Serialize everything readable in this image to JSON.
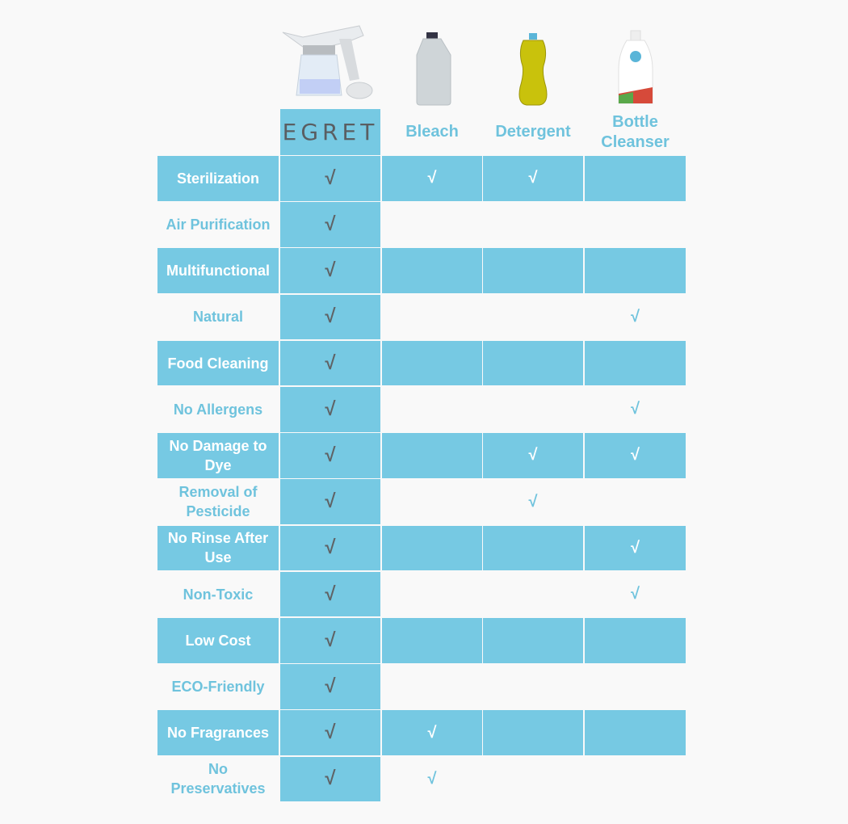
{
  "colors": {
    "accent": "#76c9e3",
    "check_primary": "#5f6366",
    "background": "#f9f9f9"
  },
  "columns": [
    {
      "key": "egret",
      "label": "EGRET",
      "image": "spray-device-image"
    },
    {
      "key": "bleach",
      "label": "Bleach",
      "image": "bleach-jug-image"
    },
    {
      "key": "detergent",
      "label": "Detergent",
      "image": "detergent-bottle-image"
    },
    {
      "key": "bottle_cleanser",
      "label": "Bottle Cleanser",
      "image": "bottle-cleanser-image"
    }
  ],
  "check_symbol": "√",
  "rows": [
    {
      "label": "Sterilization",
      "checks": [
        true,
        true,
        true,
        false
      ]
    },
    {
      "label": "Air Purification",
      "checks": [
        true,
        false,
        false,
        false
      ]
    },
    {
      "label": "Multifunctional",
      "checks": [
        true,
        false,
        false,
        false
      ]
    },
    {
      "label": "Natural",
      "checks": [
        true,
        false,
        false,
        true
      ]
    },
    {
      "label": "Food Cleaning",
      "checks": [
        true,
        false,
        false,
        false
      ]
    },
    {
      "label": "No Allergens",
      "checks": [
        true,
        false,
        false,
        true
      ]
    },
    {
      "label": "No Damage to Dye",
      "checks": [
        true,
        false,
        true,
        true
      ]
    },
    {
      "label": "Removal of Pesticide",
      "checks": [
        true,
        false,
        true,
        false
      ]
    },
    {
      "label": "No Rinse After Use",
      "checks": [
        true,
        false,
        false,
        true
      ]
    },
    {
      "label": "Non-Toxic",
      "checks": [
        true,
        false,
        false,
        true
      ]
    },
    {
      "label": "Low Cost",
      "checks": [
        true,
        false,
        false,
        false
      ]
    },
    {
      "label": "ECO-Friendly",
      "checks": [
        true,
        false,
        false,
        false
      ]
    },
    {
      "label": "No Fragrances",
      "checks": [
        true,
        true,
        false,
        false
      ]
    },
    {
      "label": "No Preservatives",
      "checks": [
        true,
        true,
        false,
        false
      ]
    }
  ]
}
